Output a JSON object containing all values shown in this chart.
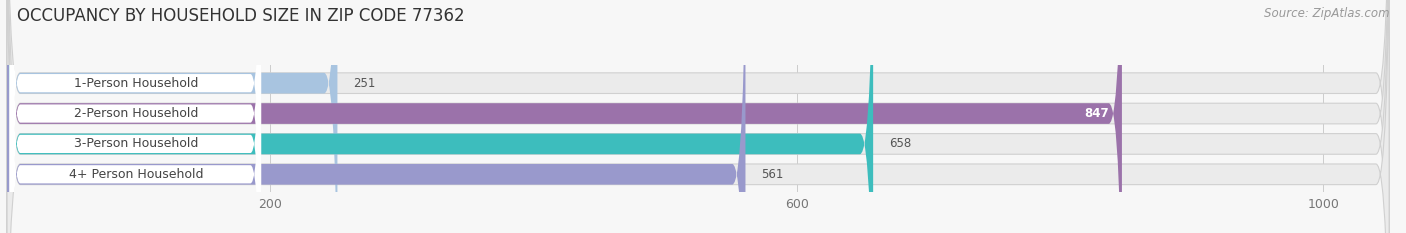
{
  "title": "OCCUPANCY BY HOUSEHOLD SIZE IN ZIP CODE 77362",
  "source": "Source: ZipAtlas.com",
  "categories": [
    "1-Person Household",
    "2-Person Household",
    "3-Person Household",
    "4+ Person Household"
  ],
  "values": [
    251,
    847,
    658,
    561
  ],
  "bar_colors": [
    "#a8c4e0",
    "#9b72aa",
    "#3dbdbd",
    "#9999cc"
  ],
  "value_inside": [
    false,
    true,
    false,
    false
  ],
  "xlim_data": 1000,
  "xlim_display": 1050,
  "xticks": [
    200,
    600,
    1000
  ],
  "bg_color": "#f7f7f7",
  "bar_bg_color": "#ebebeb",
  "label_pill_color": "#ffffff",
  "title_fontsize": 12,
  "source_fontsize": 8.5,
  "label_fontsize": 9,
  "value_fontsize": 8.5,
  "figsize": [
    14.06,
    2.33
  ],
  "dpi": 100
}
